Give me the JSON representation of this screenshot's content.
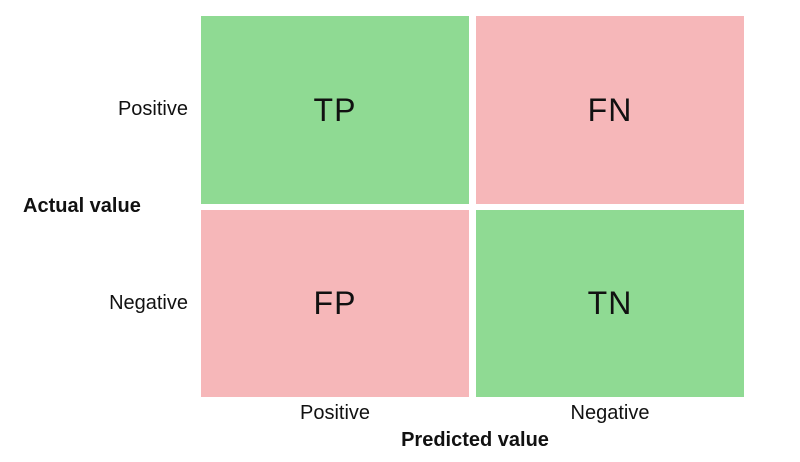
{
  "axes": {
    "actual_label": "Actual value",
    "predicted_label": "Predicted value"
  },
  "rows": {
    "positive": "Positive",
    "negative": "Negative"
  },
  "columns": {
    "positive": "Positive",
    "negative": "Negative"
  },
  "cells": {
    "tp": {
      "label": "TP",
      "color": "#8fda93"
    },
    "fn": {
      "label": "FN",
      "color": "#f6b7b9"
    },
    "fp": {
      "label": "FP",
      "color": "#f6b7b9"
    },
    "tn": {
      "label": "TN",
      "color": "#8fda93"
    }
  }
}
